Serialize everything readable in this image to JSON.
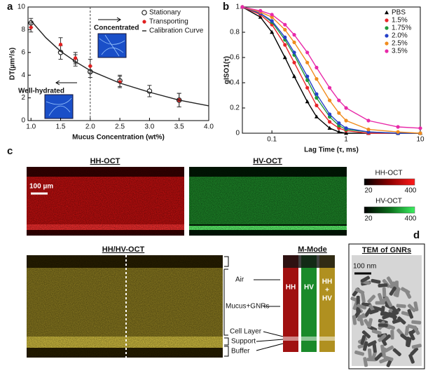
{
  "chart_data": [
    {
      "type": "scatter",
      "panel": "a",
      "xlabel": "Mucus Concentration (wt%)",
      "ylabel": "DT(µm²/s)",
      "xlim": [
        0.95,
        4.0
      ],
      "xticks": [
        {
          "value": 1.0,
          "label": "1.0"
        },
        {
          "value": 1.5,
          "label": "1.5"
        },
        {
          "value": 2.0,
          "label": "2.0"
        },
        {
          "value": 2.5,
          "label": "2.5"
        },
        {
          "value": 3.0,
          "label": "3.0"
        },
        {
          "value": 3.5,
          "label": "3.5"
        },
        {
          "value": 4.0,
          "label": "4.0"
        }
      ],
      "ylim": [
        0,
        10
      ],
      "yticks": [
        0,
        2,
        4,
        6,
        8,
        10
      ],
      "vline": 2.0,
      "annotations": [
        "Concentrated",
        "Well-hydrated"
      ],
      "legend": "upper right",
      "series": [
        {
          "name": "Stationary",
          "marker": "open-circle",
          "color": "#222222",
          "x": [
            1.0,
            1.5,
            1.75,
            2.0,
            2.5,
            3.0,
            3.5
          ],
          "values": [
            8.6,
            6.0,
            5.3,
            4.3,
            3.5,
            2.6,
            1.8
          ],
          "errors": [
            0.4,
            0.6,
            0.5,
            0.5,
            0.5,
            0.5,
            0.6
          ]
        },
        {
          "name": "Transporting",
          "marker": "circle",
          "color": "#e02020",
          "x": [
            1.0,
            1.5,
            1.75,
            2.0,
            2.5,
            3.5
          ],
          "values": [
            8.2,
            6.7,
            5.5,
            4.8,
            3.4,
            1.8
          ],
          "errors": [
            0.4,
            0.6,
            0.5,
            0.6,
            0.5,
            0.6
          ]
        },
        {
          "name": "Calibration Curve",
          "marker": "none",
          "color": "#222222",
          "x": [
            1.0,
            1.25,
            1.5,
            1.75,
            2.0,
            2.5,
            3.0,
            3.5,
            4.0
          ],
          "values": [
            8.8,
            7.3,
            6.1,
            5.2,
            4.4,
            3.3,
            2.5,
            1.8,
            1.3
          ]
        }
      ]
    },
    {
      "type": "line",
      "panel": "b",
      "xlabel": "Lag Time (τ, ms)",
      "ylabel": "gISO1(τ)",
      "xlog": true,
      "xlim": [
        0.04,
        10
      ],
      "xticks": [
        0.1,
        1,
        10
      ],
      "ylim": [
        0,
        1
      ],
      "yticks": [
        0,
        0.2,
        0.4,
        0.6,
        0.8,
        1
      ],
      "legend": "upper right",
      "x": [
        0.04,
        0.07,
        0.1,
        0.15,
        0.2,
        0.3,
        0.4,
        0.6,
        0.8,
        1,
        2,
        5,
        10
      ],
      "series": [
        {
          "name": "PBS",
          "marker": "triangle",
          "color": "#000000",
          "values": [
            1,
            0.92,
            0.8,
            0.6,
            0.45,
            0.25,
            0.13,
            0.04,
            0.01,
            0,
            0,
            0,
            0
          ]
        },
        {
          "name": "1.5%",
          "marker": "circle",
          "color": "#e8262a",
          "values": [
            1,
            0.94,
            0.86,
            0.7,
            0.56,
            0.36,
            0.22,
            0.09,
            0.04,
            0.02,
            0,
            0,
            0
          ]
        },
        {
          "name": "1.75%",
          "marker": "circle",
          "color": "#1f9a3a",
          "values": [
            1,
            0.95,
            0.88,
            0.74,
            0.62,
            0.42,
            0.28,
            0.13,
            0.06,
            0.03,
            0.01,
            0,
            0
          ]
        },
        {
          "name": "2.0%",
          "marker": "circle",
          "color": "#2540c8",
          "values": [
            1,
            0.95,
            0.89,
            0.76,
            0.64,
            0.45,
            0.31,
            0.15,
            0.08,
            0.04,
            0.01,
            0,
            0
          ]
        },
        {
          "name": "2.5%",
          "marker": "circle",
          "color": "#f08c1e",
          "values": [
            1,
            0.96,
            0.92,
            0.82,
            0.72,
            0.56,
            0.43,
            0.26,
            0.16,
            0.1,
            0.03,
            0.01,
            0
          ]
        },
        {
          "name": "3.5%",
          "marker": "circle",
          "color": "#e829a8",
          "values": [
            1,
            0.97,
            0.94,
            0.86,
            0.78,
            0.64,
            0.52,
            0.36,
            0.26,
            0.2,
            0.1,
            0.05,
            0.04
          ]
        }
      ]
    }
  ],
  "panel_c": {
    "label": "c",
    "hh_title": "HH-OCT",
    "hv_title": "HV-OCT",
    "scale_bar": "100 µm",
    "merged_title": "HH/HV-OCT",
    "mmode_title": "M-Mode",
    "mmode_channels": [
      "HH",
      "HV",
      [
        "HH",
        "+",
        "HV"
      ]
    ],
    "layers": [
      "Air",
      "Mucus+GNRs",
      "Cell Layer",
      "Support",
      "Buffer"
    ],
    "colorbars": [
      {
        "name": "HH-OCT",
        "min": 20,
        "max": 400
      },
      {
        "name": "HV-OCT",
        "min": 20,
        "max": 400
      }
    ]
  },
  "panel_d": {
    "label": "d",
    "title": "TEM of GNRs",
    "scale_bar": "100 nm"
  }
}
